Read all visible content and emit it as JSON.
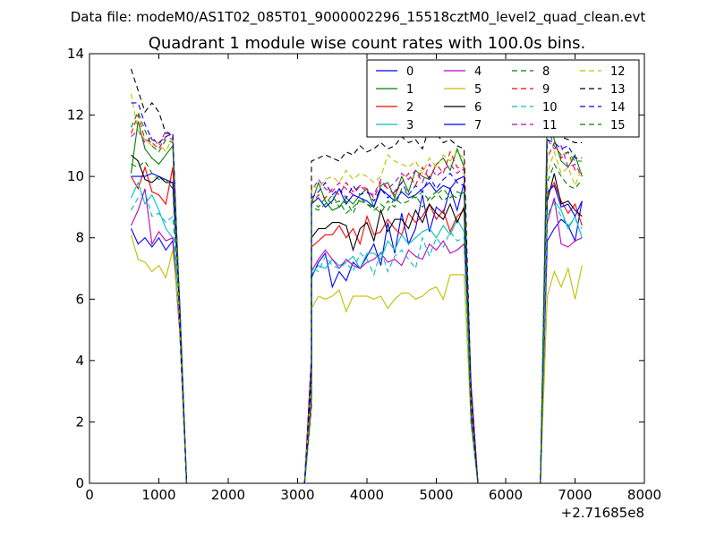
{
  "header": {
    "datafile": "Data file: modeM0/AS1T02_085T01_9000002296_15518cztM0_level2_quad_clean.evt"
  },
  "chart_data": {
    "type": "line",
    "title": "Quadrant 1 module wise count rates with 100.0s bins.",
    "xlabel": "",
    "ylabel": "",
    "xlim": [
      0,
      8000
    ],
    "ylim": [
      0,
      14
    ],
    "xticks": [
      0,
      1000,
      2000,
      3000,
      4000,
      5000,
      6000,
      7000,
      8000
    ],
    "yticks": [
      0,
      2,
      4,
      6,
      8,
      10,
      12,
      14
    ],
    "x_offset_label": "+2.71685e8",
    "legend_position": "top-right",
    "grid": false,
    "segments": [
      {
        "x": [
          600,
          700,
          800,
          900,
          1000,
          1100,
          1200,
          1300,
          1400,
          1500,
          1600,
          1700,
          1800,
          1900,
          2000,
          2100,
          2200,
          2300,
          2400,
          2500,
          2600,
          2700,
          2800,
          2900,
          3000,
          3100,
          3200,
          3300,
          3400,
          3500,
          3600,
          3700,
          3800,
          3900,
          4000,
          4100,
          4200,
          4300,
          4400,
          4500,
          4600,
          4700,
          4800,
          4900,
          5000,
          5100,
          5200,
          5300,
          5400,
          5500,
          5600,
          5700,
          5800,
          5900,
          6000,
          6100,
          6200,
          6300,
          6400,
          6500,
          6600,
          6700,
          6800,
          6900,
          7000,
          7100
        ],
        "index_note": "shared x grid"
      }
    ],
    "series": [
      {
        "name": "0",
        "color": "#0000ff",
        "style": "solid",
        "values": [
          8.3,
          7.8,
          8.0,
          7.7,
          8.0,
          7.6,
          7.9
        ]
      },
      {
        "name": "1",
        "color": "#008000",
        "style": "solid",
        "values": [
          10.1,
          11.8,
          10.9,
          10.6,
          10.4,
          10.7,
          11.0
        ]
      },
      {
        "name": "2",
        "color": "#ff0000",
        "style": "solid",
        "values": [
          10.0,
          9.6,
          10.3,
          9.5,
          9.4,
          9.1,
          10.3
        ]
      },
      {
        "name": "3",
        "color": "#00bfbf",
        "style": "solid",
        "values": [
          9.3,
          9.8,
          9.1,
          9.4,
          8.9,
          8.3,
          8.0
        ]
      },
      {
        "name": "4",
        "color": "#bf00bf",
        "style": "solid",
        "values": [
          8.4,
          8.9,
          9.6,
          7.8,
          8.2,
          7.9,
          8.0
        ]
      },
      {
        "name": "5",
        "color": "#bfbf00",
        "style": "solid",
        "values": [
          8.1,
          7.3,
          7.2,
          6.9,
          7.1,
          6.7,
          7.6
        ]
      },
      {
        "name": "6",
        "color": "#000000",
        "style": "solid",
        "values": [
          10.7,
          10.5,
          9.9,
          9.8,
          10.0,
          9.8,
          9.8
        ]
      },
      {
        "name": "7",
        "color": "#0000ff",
        "style": "solid",
        "values": [
          10.0,
          10.0,
          10.0,
          10.1,
          10.0,
          9.9,
          9.8
        ]
      },
      {
        "name": "8",
        "color": "#008000",
        "style": "dashed",
        "values": [
          10.4,
          10.3,
          10.5,
          10.1,
          9.9,
          9.9,
          9.6
        ]
      },
      {
        "name": "9",
        "color": "#ff0000",
        "style": "dashed",
        "values": [
          11.4,
          12.0,
          11.2,
          11.1,
          10.9,
          11.3,
          11.2
        ]
      },
      {
        "name": "10",
        "color": "#00bfbf",
        "style": "dashed",
        "values": [
          8.9,
          9.3,
          9.5,
          8.7,
          8.8,
          8.5,
          8.7
        ]
      },
      {
        "name": "11",
        "color": "#bf00bf",
        "style": "dashed",
        "values": [
          11.3,
          11.5,
          11.1,
          11.3,
          11.0,
          11.5,
          11.3
        ]
      },
      {
        "name": "12",
        "color": "#bfbf00",
        "style": "dashed",
        "values": [
          12.7,
          11.5,
          11.2,
          11.0,
          11.1,
          10.8,
          11.3
        ]
      },
      {
        "name": "13",
        "color": "#000000",
        "style": "dashed",
        "values": [
          13.5,
          12.8,
          12.1,
          12.4,
          12.1,
          11.4,
          11.4
        ]
      },
      {
        "name": "14",
        "color": "#0000ff",
        "style": "dashed",
        "values": [
          12.4,
          12.4,
          11.7,
          11.2,
          11.1,
          11.3,
          11.4
        ]
      },
      {
        "name": "15",
        "color": "#008000",
        "style": "dashed",
        "values": [
          11.6,
          12.1,
          11.5,
          11.0,
          10.8,
          11.2,
          11.1
        ]
      }
    ],
    "mid_block_values": {
      "x": [
        3200,
        3300,
        3400,
        3500,
        3600,
        3700,
        3800,
        3900,
        4000,
        4100,
        4200,
        4300,
        4400,
        4500,
        4600,
        4700,
        4800,
        4900,
        5000,
        5100,
        5200,
        5300,
        5400
      ],
      "0": [
        6.7,
        7.2,
        7.5,
        6.4,
        6.9,
        6.6,
        7.2,
        7.0,
        7.4,
        7.8,
        7.1,
        8.5,
        7.5,
        8.8,
        7.8,
        8.3,
        9.4,
        8.2,
        9.0,
        8.8,
        9.6,
        8.9,
        9.8
      ],
      "1": [
        9.1,
        9.8,
        9.2,
        8.9,
        9.0,
        9.3,
        9.1,
        9.4,
        9.6,
        9.0,
        9.7,
        9.8,
        9.3,
        10.0,
        9.5,
        10.2,
        10.0,
        9.9,
        10.4,
        10.6,
        10.2,
        10.9,
        10.3
      ],
      "2": [
        7.7,
        7.9,
        8.1,
        8.1,
        8.4,
        8.0,
        8.3,
        7.8,
        8.7,
        8.1,
        8.2,
        8.6,
        8.3,
        8.1,
        8.8,
        8.5,
        8.7,
        9.1,
        8.6,
        8.9,
        8.2,
        8.7,
        8.9
      ],
      "3": [
        6.8,
        7.1,
        7.0,
        7.3,
        7.1,
        7.2,
        7.4,
        7.0,
        7.5,
        7.5,
        7.3,
        7.9,
        7.6,
        8.1,
        7.8,
        8.0,
        8.2,
        8.3,
        8.0,
        8.4,
        8.1,
        8.6,
        8.2
      ],
      "4": [
        6.9,
        7.3,
        7.6,
        7.3,
        7.0,
        7.3,
        7.1,
        7.0,
        7.2,
        7.3,
        7.5,
        7.2,
        7.3,
        7.1,
        7.6,
        7.4,
        7.3,
        7.8,
        7.6,
        7.9,
        7.5,
        7.6,
        7.8
      ],
      "5": [
        5.7,
        6.1,
        6.0,
        6.1,
        6.3,
        5.6,
        6.1,
        6.1,
        6.1,
        6.0,
        6.1,
        5.7,
        6.0,
        6.2,
        6.2,
        6.0,
        6.1,
        6.3,
        6.4,
        6.0,
        6.8,
        6.8,
        6.8
      ],
      "6": [
        8.0,
        8.3,
        8.3,
        8.5,
        8.5,
        8.4,
        7.6,
        8.3,
        8.5,
        7.9,
        8.9,
        8.2,
        8.6,
        8.6,
        8.3,
        8.9,
        8.5,
        9.1,
        8.8,
        8.6,
        9.1,
        8.5,
        9.0
      ],
      "7": [
        9.1,
        9.3,
        9.0,
        9.2,
        9.6,
        9.1,
        9.4,
        9.3,
        9.2,
        9.0,
        9.6,
        9.4,
        9.2,
        9.5,
        9.3,
        9.4,
        9.6,
        9.8,
        9.5,
        9.7,
        9.6,
        9.9,
        10.0
      ],
      "8": [
        9.0,
        8.9,
        9.1,
        9.4,
        9.0,
        9.2,
        8.8,
        9.3,
        9.1,
        9.0,
        8.8,
        9.2,
        9.0,
        9.6,
        9.4,
        9.3,
        9.5,
        9.2,
        9.4,
        9.6,
        9.3,
        9.5,
        9.4
      ],
      "9": [
        9.1,
        9.4,
        9.3,
        9.6,
        9.4,
        9.8,
        9.5,
        9.7,
        9.6,
        9.3,
        9.8,
        9.6,
        9.4,
        9.8,
        10.1,
        9.7,
        10.3,
        9.9,
        10.4,
        10.1,
        10.8,
        10.3,
        10.2
      ],
      "10": [
        7.0,
        6.9,
        7.4,
        7.1,
        7.0,
        7.2,
        6.9,
        7.5,
        7.3,
        6.8,
        7.6,
        6.9,
        7.4,
        7.6,
        7.3,
        7.0,
        8.0,
        7.4,
        8.0,
        7.7,
        8.2,
        7.9,
        8.0
      ],
      "11": [
        9.5,
        9.9,
        9.6,
        9.5,
        9.8,
        9.6,
        9.4,
        9.7,
        9.5,
        9.4,
        9.9,
        9.6,
        9.8,
        10.1,
        9.9,
        10.2,
        9.8,
        10.4,
        10.0,
        10.2,
        10.4,
        10.1,
        10.3
      ],
      "12": [
        9.7,
        9.6,
        9.9,
        10.0,
        9.8,
        10.2,
        9.9,
        10.1,
        10.0,
        9.8,
        10.0,
        10.7,
        10.5,
        10.4,
        10.3,
        10.5,
        10.1,
        10.6,
        10.3,
        10.7,
        10.5,
        10.8,
        10.6
      ],
      "13": [
        10.5,
        10.6,
        10.7,
        10.6,
        10.5,
        10.8,
        10.7,
        11.0,
        10.8,
        10.9,
        11.1,
        10.9,
        11.0,
        11.3,
        11.1,
        11.2,
        10.9,
        11.6,
        11.4,
        11.1,
        11.2,
        11.0,
        10.9
      ],
      "14": [
        9.3,
        9.5,
        9.8,
        9.4,
        9.6,
        9.3,
        9.7,
        9.4,
        9.5,
        9.2,
        9.6,
        9.3,
        9.5,
        9.8,
        9.4,
        9.7,
        9.5,
        10.0,
        9.6,
        9.9,
        10.1,
        9.8,
        9.7
      ],
      "15": [
        9.2,
        9.0,
        9.3,
        9.1,
        9.2,
        8.8,
        9.0,
        9.2,
        9.1,
        8.9,
        9.1,
        8.9,
        9.3,
        9.1,
        9.2,
        9.4,
        9.0,
        9.3,
        9.5,
        9.2,
        9.4,
        9.3,
        9.5
      ]
    },
    "end_block_values": {
      "x": [
        6600,
        6700,
        6800,
        6900,
        7000,
        7100
      ],
      "0": [
        7.9,
        8.3,
        8.6,
        8.4,
        7.9,
        9.2
      ],
      "1": [
        12.1,
        11.2,
        10.5,
        10.3,
        10.7,
        10.0
      ],
      "2": [
        9.4,
        9.8,
        9.2,
        8.8,
        9.1,
        8.4
      ],
      "3": [
        8.7,
        9.2,
        8.9,
        8.3,
        8.7,
        8.0
      ],
      "4": [
        8.5,
        9.3,
        7.8,
        7.7,
        7.9,
        8.0
      ],
      "5": [
        6.1,
        6.9,
        6.4,
        7.0,
        6.0,
        7.1
      ],
      "6": [
        9.2,
        10.1,
        9.1,
        9.2,
        8.9,
        8.7
      ],
      "7": [
        9.5,
        9.7,
        9.0,
        9.1,
        8.7,
        9.2
      ],
      "8": [
        9.8,
        10.4,
        10.0,
        9.7,
        9.6,
        9.9
      ],
      "9": [
        10.6,
        11.1,
        10.6,
        10.8,
        10.2,
        10.1
      ],
      "10": [
        8.8,
        9.1,
        8.7,
        8.4,
        8.6,
        8.3
      ],
      "11": [
        11.2,
        10.9,
        11.0,
        10.3,
        10.4,
        10.0
      ],
      "12": [
        10.1,
        10.8,
        10.1,
        10.3,
        9.7,
        10.3
      ],
      "13": [
        11.9,
        11.5,
        11.3,
        11.2,
        11.1,
        11.1
      ],
      "14": [
        11.2,
        11.1,
        10.9,
        11.0,
        10.6,
        10.6
      ],
      "15": [
        11.6,
        11.0,
        10.7,
        10.8,
        10.5,
        10.5
      ]
    },
    "gap_ranges": [
      [
        1300,
        1400
      ],
      [
        1400,
        3000
      ],
      [
        5500,
        5600
      ],
      [
        5600,
        6500
      ]
    ]
  }
}
